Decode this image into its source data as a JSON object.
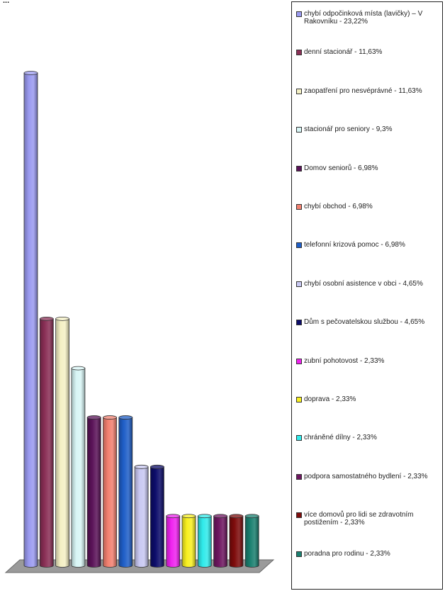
{
  "title": "...",
  "chart_data": {
    "type": "bar",
    "title": "",
    "xlabel": "",
    "ylabel": "",
    "ylim": [
      0,
      24
    ],
    "grid": false,
    "legend_position": "right",
    "series": [
      {
        "label": "chybí odpočinková místa (lavičky) – V Rakovníku - 23,22%",
        "value": 23.22,
        "color": "#9a9af0"
      },
      {
        "label": "denní stacionář - 11,63%",
        "value": 11.63,
        "color": "#8a2f56"
      },
      {
        "label": "zaopatření pro nesvéprávné - 11,63%",
        "value": 11.63,
        "color": "#f4f0c4"
      },
      {
        "label": "stacionář pro seniory - 9,3%",
        "value": 9.3,
        "color": "#d8f6f6"
      },
      {
        "label": "Domov seniorů - 6,98%",
        "value": 6.98,
        "color": "#5a1258"
      },
      {
        "label": "chybí obchod - 6,98%",
        "value": 6.98,
        "color": "#f28070"
      },
      {
        "label": "telefonní krizová pomoc - 6,98%",
        "value": 6.98,
        "color": "#1f5fc8"
      },
      {
        "label": "chybí osobní asistence v obci - 4,65%",
        "value": 4.65,
        "color": "#c8c8f2"
      },
      {
        "label": "Dům s pečovatelskou službou - 4,65%",
        "value": 4.65,
        "color": "#0c0c6a"
      },
      {
        "label": "zubní pohotovost - 2,33%",
        "value": 2.33,
        "color": "#ee22ee"
      },
      {
        "label": "doprava - 2,33%",
        "value": 2.33,
        "color": "#f8f020"
      },
      {
        "label": "chráněné dílny - 2,33%",
        "value": 2.33,
        "color": "#30eaea"
      },
      {
        "label": "podpora samostatného bydlení - 2,33%",
        "value": 2.33,
        "color": "#6e1660"
      },
      {
        "label": "více domovů pro lidi se zdravotním postižením - 2,33%",
        "value": 2.33,
        "color": "#7e0c0c"
      },
      {
        "label": "poradna pro rodinu - 2,33%",
        "value": 2.33,
        "color": "#1a8070"
      }
    ]
  }
}
